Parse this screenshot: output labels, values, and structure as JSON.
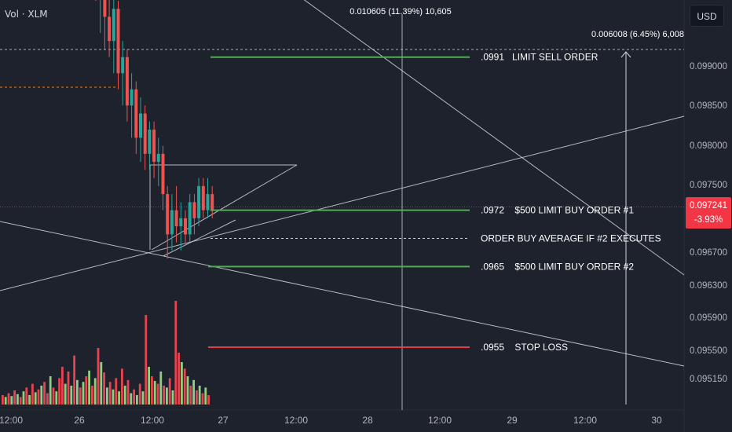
{
  "header": {
    "vol_label": "Vol · XLM",
    "currency_button": "USD"
  },
  "price_badge": {
    "price": "0.097241",
    "change": "-3.93%"
  },
  "colors": {
    "background": "#1e222d",
    "up": "#26a69a",
    "down": "#ef5350",
    "vol_up": "#8fcf7f",
    "vol_down": "#e8434f",
    "green_line": "#4caf50",
    "red_line": "#e53946",
    "white_line": "#d1d4dc",
    "orange_line": "#f57f17"
  },
  "chart_data": {
    "type": "candlestick",
    "y_axis": {
      "ticks": [
        "0.099000",
        "0.098500",
        "0.098000",
        "0.097500",
        "0.096700",
        "0.096300",
        "0.095900",
        "0.095500",
        "0.095150"
      ]
    },
    "x_axis": {
      "ticks": [
        "12:00",
        "26",
        "12:00",
        "27",
        "12:00",
        "28",
        "12:00",
        "29",
        "12:00",
        "30"
      ]
    },
    "last_price": 0.097241,
    "annotations": [
      {
        "label": ".0991   LIMIT SELL ORDER",
        "price": 0.0991,
        "color": "green"
      },
      {
        "label": ".0972    $500 LIMIT BUY ORDER #1",
        "price": 0.0972,
        "color": "green"
      },
      {
        "label": "ORDER BUY AVERAGE IF #2 EXECUTES",
        "price": 0.09685,
        "color": "dashed"
      },
      {
        "label": ".0965    $500 LIMIT BUY ORDER #2",
        "price": 0.0965,
        "color": "green"
      },
      {
        "label": ".0955    STOP LOSS",
        "price": 0.0955,
        "color": "red"
      }
    ],
    "measurements": [
      {
        "label": "0.010605 (11.39%) 10,605"
      },
      {
        "label": "0.006008 (6.45%) 6,008"
      }
    ],
    "candles": [
      {
        "o": 0.1004,
        "h": 0.101,
        "l": 0.0998,
        "c": 0.1
      },
      {
        "o": 0.1,
        "h": 0.1006,
        "l": 0.0994,
        "c": 0.1003
      },
      {
        "o": 0.1003,
        "h": 0.1004,
        "l": 0.0992,
        "c": 0.0996
      },
      {
        "o": 0.0996,
        "h": 0.1001,
        "l": 0.0991,
        "c": 0.0993
      },
      {
        "o": 0.0993,
        "h": 0.0999,
        "l": 0.0989,
        "c": 0.0997
      },
      {
        "o": 0.0997,
        "h": 0.0998,
        "l": 0.0987,
        "c": 0.0989
      },
      {
        "o": 0.0989,
        "h": 0.0993,
        "l": 0.0985,
        "c": 0.0991
      },
      {
        "o": 0.0991,
        "h": 0.0992,
        "l": 0.0983,
        "c": 0.0985
      },
      {
        "o": 0.0985,
        "h": 0.0989,
        "l": 0.0981,
        "c": 0.0987
      },
      {
        "o": 0.0987,
        "h": 0.0988,
        "l": 0.0979,
        "c": 0.0981
      },
      {
        "o": 0.0981,
        "h": 0.0986,
        "l": 0.0978,
        "c": 0.0984
      },
      {
        "o": 0.0984,
        "h": 0.0985,
        "l": 0.0977,
        "c": 0.0979
      },
      {
        "o": 0.0979,
        "h": 0.0983,
        "l": 0.0977,
        "c": 0.0982
      },
      {
        "o": 0.0982,
        "h": 0.0983,
        "l": 0.0976,
        "c": 0.0978
      },
      {
        "o": 0.0978,
        "h": 0.0981,
        "l": 0.0975,
        "c": 0.0979
      },
      {
        "o": 0.0979,
        "h": 0.098,
        "l": 0.0972,
        "c": 0.0974
      },
      {
        "o": 0.0974,
        "h": 0.0975,
        "l": 0.0966,
        "c": 0.0969
      },
      {
        "o": 0.0969,
        "h": 0.0974,
        "l": 0.0967,
        "c": 0.0972
      },
      {
        "o": 0.0972,
        "h": 0.0975,
        "l": 0.0968,
        "c": 0.097
      },
      {
        "o": 0.097,
        "h": 0.0973,
        "l": 0.0967,
        "c": 0.0971
      },
      {
        "o": 0.0971,
        "h": 0.0972,
        "l": 0.0968,
        "c": 0.0969
      },
      {
        "o": 0.0969,
        "h": 0.0974,
        "l": 0.0968,
        "c": 0.0973
      },
      {
        "o": 0.0973,
        "h": 0.0974,
        "l": 0.0969,
        "c": 0.0971
      },
      {
        "o": 0.0971,
        "h": 0.0976,
        "l": 0.097,
        "c": 0.0975
      },
      {
        "o": 0.0975,
        "h": 0.0976,
        "l": 0.0971,
        "c": 0.0972
      },
      {
        "o": 0.0972,
        "h": 0.0976,
        "l": 0.0971,
        "c": 0.0974
      },
      {
        "o": 0.0974,
        "h": 0.0975,
        "l": 0.0971,
        "c": 0.0972
      }
    ],
    "volumes": [
      {
        "v": 10,
        "up": false
      },
      {
        "v": 8,
        "up": true
      },
      {
        "v": 12,
        "up": false
      },
      {
        "v": 9,
        "up": true
      },
      {
        "v": 15,
        "up": false
      },
      {
        "v": 11,
        "up": true
      },
      {
        "v": 8,
        "up": false
      },
      {
        "v": 14,
        "up": true
      },
      {
        "v": 18,
        "up": false
      },
      {
        "v": 10,
        "up": true
      },
      {
        "v": 22,
        "up": false
      },
      {
        "v": 13,
        "up": true
      },
      {
        "v": 16,
        "up": false
      },
      {
        "v": 20,
        "up": true
      },
      {
        "v": 24,
        "up": false
      },
      {
        "v": 12,
        "up": false
      },
      {
        "v": 30,
        "up": true
      },
      {
        "v": 18,
        "up": false
      },
      {
        "v": 14,
        "up": true
      },
      {
        "v": 28,
        "up": false
      },
      {
        "v": 40,
        "up": false
      },
      {
        "v": 22,
        "up": true
      },
      {
        "v": 35,
        "up": false
      },
      {
        "v": 20,
        "up": true
      },
      {
        "v": 52,
        "up": false
      },
      {
        "v": 26,
        "up": true
      },
      {
        "v": 18,
        "up": false
      },
      {
        "v": 24,
        "up": true
      },
      {
        "v": 30,
        "up": false
      },
      {
        "v": 36,
        "up": true
      },
      {
        "v": 20,
        "up": false
      },
      {
        "v": 28,
        "up": true
      },
      {
        "v": 60,
        "up": false
      },
      {
        "v": 45,
        "up": true
      },
      {
        "v": 34,
        "up": false
      },
      {
        "v": 18,
        "up": true
      },
      {
        "v": 24,
        "up": false
      },
      {
        "v": 16,
        "up": true
      },
      {
        "v": 28,
        "up": false
      },
      {
        "v": 14,
        "up": true
      },
      {
        "v": 38,
        "up": false
      },
      {
        "v": 20,
        "up": true
      },
      {
        "v": 26,
        "up": false
      },
      {
        "v": 12,
        "up": true
      },
      {
        "v": 16,
        "up": false
      },
      {
        "v": 10,
        "up": true
      },
      {
        "v": 22,
        "up": false
      },
      {
        "v": 14,
        "up": true
      },
      {
        "v": 95,
        "up": false
      },
      {
        "v": 40,
        "up": true
      },
      {
        "v": 30,
        "up": false
      },
      {
        "v": 25,
        "up": true
      },
      {
        "v": 22,
        "up": false
      },
      {
        "v": 35,
        "up": true
      },
      {
        "v": 20,
        "up": false
      },
      {
        "v": 18,
        "up": true
      },
      {
        "v": 28,
        "up": false
      },
      {
        "v": 15,
        "up": true
      },
      {
        "v": 110,
        "up": false
      },
      {
        "v": 55,
        "up": false
      },
      {
        "v": 45,
        "up": true
      },
      {
        "v": 38,
        "up": false
      },
      {
        "v": 30,
        "up": true
      },
      {
        "v": 20,
        "up": false
      },
      {
        "v": 26,
        "up": true
      },
      {
        "v": 15,
        "up": false
      },
      {
        "v": 20,
        "up": true
      },
      {
        "v": 12,
        "up": false
      },
      {
        "v": 18,
        "up": true
      },
      {
        "v": 10,
        "up": false
      }
    ]
  }
}
